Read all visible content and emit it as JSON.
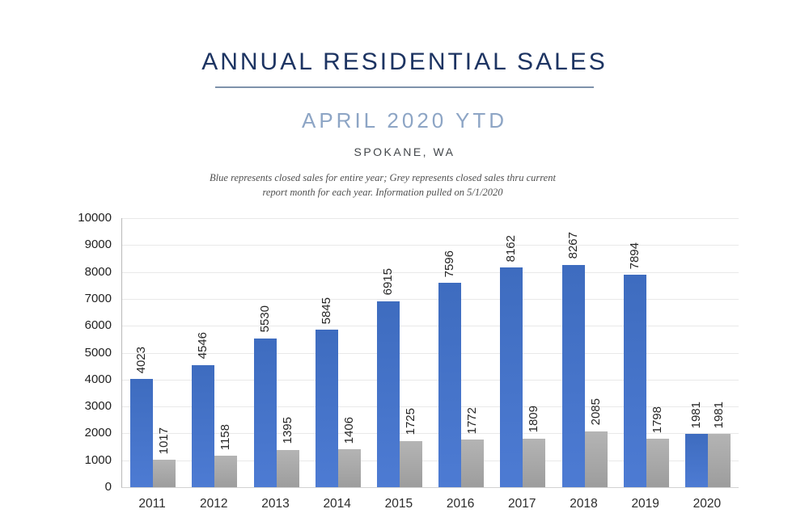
{
  "header": {
    "title": "ANNUAL RESIDENTIAL SALES",
    "subtitle": "APRIL 2020 YTD",
    "location": "SPOKANE, WA",
    "note_line1": "Blue represents closed sales for entire year; Grey represents closed sales thru current",
    "note_line2": "report month for each year.  Information pulled on 5/1/2020",
    "title_color": "#1d3462",
    "subtitle_color": "#8da5c5",
    "underline_color": "#7e92ab"
  },
  "chart_data": {
    "type": "bar",
    "title": "Annual Residential Sales — April 2020 YTD, Spokane, WA",
    "categories": [
      "2011",
      "2012",
      "2013",
      "2014",
      "2015",
      "2016",
      "2017",
      "2018",
      "2019",
      "2020"
    ],
    "series": [
      {
        "name": "Closed sales for entire year (blue)",
        "values": [
          4023,
          4546,
          5530,
          5845,
          6915,
          7596,
          8162,
          8267,
          7894,
          1981
        ]
      },
      {
        "name": "Closed sales thru current report month (grey)",
        "values": [
          1017,
          1158,
          1395,
          1406,
          1725,
          1772,
          1809,
          2085,
          1798,
          1981
        ]
      }
    ],
    "xlabel": "",
    "ylabel": "",
    "ylim": [
      0,
      10000
    ],
    "ytick_step": 1000,
    "grid": true,
    "legend_position": "none",
    "value_labels": "rotated-90-above-bars",
    "colors": {
      "blue_top": "#3e6cbf",
      "blue_bottom": "#4d7bd3",
      "grey_top": "#b4b4b4",
      "grey_bottom": "#9d9d9d"
    }
  }
}
